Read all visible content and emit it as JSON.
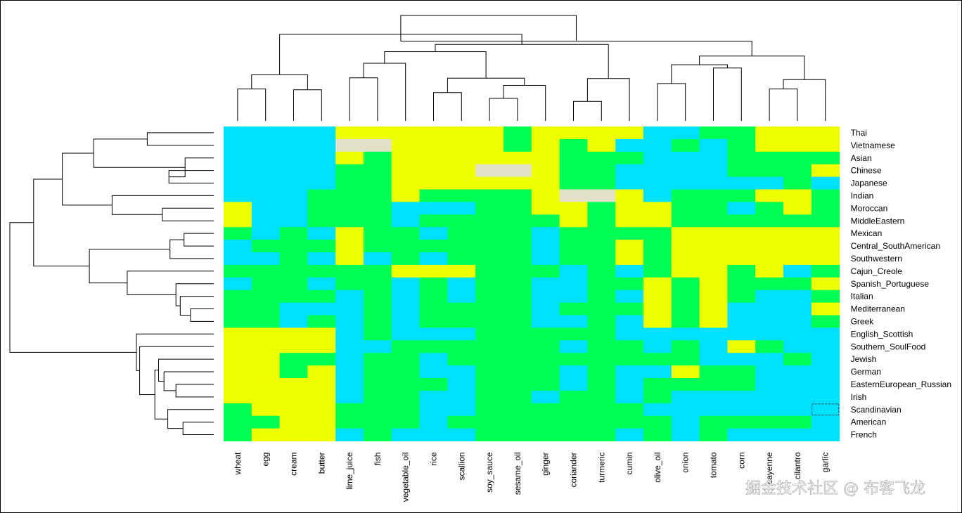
{
  "chart_data": {
    "type": "heatmap",
    "title": "",
    "rows": [
      "Thai",
      "Vietnamese",
      "Asian",
      "Chinese",
      "Japanese",
      "Indian",
      "Moroccan",
      "MiddleEastern",
      "Mexican",
      "Central_SouthAmerican",
      "Southwestern",
      "Cajun_Creole",
      "Spanish_Portuguese",
      "Italian",
      "Mediterranean",
      "Greek",
      "English_Scottish",
      "Southern_SoulFood",
      "Jewish",
      "German",
      "EasternEuropean_Russian",
      "Irish",
      "Scandinavian",
      "American",
      "French"
    ],
    "columns": [
      "wheat",
      "egg",
      "cream",
      "butter",
      "lime_juice",
      "fish",
      "vegetable_oil",
      "rice",
      "scallion",
      "soy_sauce",
      "sesame_oil",
      "ginger",
      "coriander",
      "turmeric",
      "cumin",
      "olive_oil",
      "onion",
      "tomato",
      "corn",
      "cayenne",
      "cilantro",
      "garlic"
    ],
    "levels": {
      "0": {
        "name": "low",
        "color": "#00e1ff"
      },
      "1": {
        "name": "medium",
        "color": "#00ff55"
      },
      "2": {
        "name": "high",
        "color": "#eeff00"
      },
      "3": {
        "name": "missing",
        "color": "#e3e0c8"
      }
    },
    "values": [
      [
        0,
        0,
        0,
        0,
        2,
        2,
        2,
        2,
        2,
        2,
        1,
        2,
        2,
        2,
        2,
        0,
        0,
        1,
        1,
        2,
        2,
        2
      ],
      [
        0,
        0,
        0,
        0,
        3,
        3,
        2,
        2,
        2,
        2,
        1,
        2,
        1,
        2,
        0,
        0,
        1,
        0,
        1,
        2,
        2,
        2
      ],
      [
        0,
        0,
        0,
        0,
        2,
        1,
        2,
        2,
        2,
        2,
        2,
        2,
        1,
        1,
        1,
        0,
        0,
        0,
        1,
        1,
        1,
        1
      ],
      [
        0,
        0,
        0,
        0,
        1,
        1,
        2,
        2,
        2,
        3,
        3,
        2,
        1,
        1,
        0,
        0,
        0,
        0,
        1,
        1,
        1,
        2
      ],
      [
        0,
        0,
        0,
        0,
        1,
        1,
        2,
        2,
        2,
        2,
        2,
        2,
        1,
        1,
        0,
        0,
        0,
        0,
        0,
        0,
        1,
        0
      ],
      [
        0,
        0,
        0,
        1,
        1,
        1,
        2,
        1,
        1,
        1,
        1,
        2,
        3,
        3,
        2,
        0,
        1,
        1,
        1,
        2,
        2,
        1
      ],
      [
        2,
        0,
        0,
        1,
        1,
        1,
        0,
        0,
        0,
        1,
        1,
        2,
        2,
        1,
        2,
        2,
        1,
        1,
        0,
        1,
        2,
        1
      ],
      [
        2,
        0,
        0,
        1,
        1,
        1,
        0,
        1,
        1,
        1,
        1,
        1,
        2,
        1,
        2,
        2,
        1,
        1,
        1,
        1,
        1,
        1
      ],
      [
        1,
        0,
        1,
        0,
        2,
        1,
        1,
        0,
        1,
        1,
        1,
        0,
        1,
        1,
        1,
        1,
        2,
        2,
        2,
        2,
        2,
        2
      ],
      [
        0,
        1,
        1,
        1,
        2,
        1,
        1,
        1,
        1,
        1,
        1,
        0,
        1,
        1,
        2,
        1,
        2,
        2,
        2,
        2,
        2,
        2
      ],
      [
        0,
        0,
        1,
        0,
        2,
        0,
        1,
        0,
        1,
        1,
        1,
        0,
        1,
        1,
        2,
        1,
        2,
        2,
        2,
        2,
        2,
        2
      ],
      [
        1,
        1,
        1,
        1,
        1,
        1,
        2,
        2,
        2,
        1,
        1,
        1,
        0,
        1,
        0,
        1,
        2,
        2,
        1,
        2,
        0,
        1
      ],
      [
        0,
        1,
        1,
        0,
        1,
        1,
        0,
        1,
        0,
        1,
        1,
        0,
        0,
        1,
        1,
        2,
        1,
        2,
        1,
        1,
        1,
        2
      ],
      [
        1,
        1,
        1,
        1,
        0,
        1,
        0,
        1,
        0,
        1,
        1,
        0,
        0,
        1,
        0,
        2,
        1,
        2,
        1,
        0,
        0,
        1
      ],
      [
        1,
        1,
        0,
        0,
        0,
        1,
        0,
        1,
        1,
        1,
        1,
        0,
        1,
        1,
        1,
        2,
        1,
        2,
        0,
        0,
        0,
        2
      ],
      [
        1,
        1,
        0,
        1,
        0,
        1,
        0,
        1,
        1,
        1,
        1,
        0,
        0,
        1,
        0,
        2,
        1,
        2,
        0,
        0,
        0,
        1
      ],
      [
        2,
        2,
        2,
        2,
        0,
        1,
        0,
        0,
        0,
        1,
        1,
        1,
        1,
        1,
        0,
        0,
        0,
        0,
        0,
        0,
        0,
        0
      ],
      [
        2,
        2,
        2,
        2,
        0,
        0,
        1,
        1,
        1,
        1,
        1,
        1,
        0,
        1,
        1,
        0,
        1,
        0,
        2,
        1,
        0,
        0
      ],
      [
        2,
        2,
        1,
        1,
        0,
        1,
        1,
        0,
        1,
        1,
        1,
        1,
        1,
        1,
        1,
        1,
        1,
        0,
        0,
        0,
        1,
        0
      ],
      [
        2,
        2,
        1,
        2,
        0,
        1,
        1,
        0,
        0,
        1,
        1,
        1,
        0,
        1,
        0,
        0,
        2,
        1,
        1,
        0,
        0,
        0
      ],
      [
        2,
        2,
        2,
        2,
        0,
        1,
        1,
        1,
        0,
        1,
        1,
        1,
        0,
        1,
        0,
        1,
        1,
        1,
        1,
        0,
        0,
        0
      ],
      [
        2,
        2,
        2,
        2,
        0,
        1,
        1,
        0,
        0,
        1,
        1,
        0,
        1,
        1,
        0,
        1,
        0,
        0,
        0,
        0,
        0,
        0
      ],
      [
        1,
        2,
        2,
        2,
        1,
        1,
        1,
        0,
        0,
        1,
        1,
        1,
        1,
        1,
        1,
        0,
        0,
        0,
        0,
        0,
        0,
        0
      ],
      [
        1,
        1,
        2,
        2,
        1,
        1,
        1,
        0,
        1,
        1,
        1,
        1,
        1,
        1,
        1,
        1,
        0,
        1,
        1,
        1,
        1,
        0
      ],
      [
        1,
        2,
        2,
        2,
        0,
        1,
        0,
        0,
        0,
        1,
        1,
        1,
        1,
        1,
        0,
        1,
        0,
        1,
        0,
        0,
        0,
        0
      ]
    ],
    "highlighted_cell": {
      "row": "Scandinavian",
      "column": "garlic"
    },
    "column_dendrogram": {
      "leaf_order": [
        "wheat",
        "egg",
        "cream",
        "butter",
        "lime_juice",
        "fish",
        "vegetable_oil",
        "rice",
        "scallion",
        "soy_sauce",
        "sesame_oil",
        "ginger",
        "coriander",
        "turmeric",
        "cumin",
        "olive_oil",
        "onion",
        "tomato",
        "corn",
        "cayenne",
        "cilantro",
        "garlic"
      ],
      "merges": [
        {
          "a": "L0",
          "b": "L1",
          "h": 0.88
        },
        {
          "a": "L2",
          "b": "L3",
          "h": 0.86
        },
        {
          "a": "N0",
          "b": "N1",
          "h": 1.27
        },
        {
          "a": "L4",
          "b": "L5",
          "h": 1.19
        },
        {
          "a": "N3",
          "b": "L6",
          "h": 1.59
        },
        {
          "a": "L7",
          "b": "L8",
          "h": 0.78
        },
        {
          "a": "L9",
          "b": "L10",
          "h": 0.62
        },
        {
          "a": "N6",
          "b": "L11",
          "h": 0.98
        },
        {
          "a": "N5",
          "b": "N7",
          "h": 1.18
        },
        {
          "a": "N4",
          "b": "N8",
          "h": 1.91
        },
        {
          "a": "L12",
          "b": "L13",
          "h": 0.54
        },
        {
          "a": "N10",
          "b": "L14",
          "h": 1.17
        },
        {
          "a": "N9",
          "b": "N11",
          "h": 2.11
        },
        {
          "a": "N2",
          "b": "N12",
          "h": 2.39
        },
        {
          "a": "L15",
          "b": "L16",
          "h": 1.03
        },
        {
          "a": "L17",
          "b": "L18",
          "h": 1.46
        },
        {
          "a": "L19",
          "b": "L20",
          "h": 0.88
        },
        {
          "a": "N16",
          "b": "L21",
          "h": 1.14
        },
        {
          "a": "N14",
          "b": "N15",
          "h": 1.55
        },
        {
          "a": "N18",
          "b": "N17",
          "h": 1.79
        },
        {
          "a": "N19",
          "b": "N13",
          "h": 2.2
        },
        {
          "a": "N13",
          "b": "N20",
          "h": 2.91
        }
      ]
    },
    "row_dendrogram": {
      "leaf_order": [
        "Thai",
        "Vietnamese",
        "Asian",
        "Chinese",
        "Japanese",
        "Indian",
        "Moroccan",
        "MiddleEastern",
        "Mexican",
        "Central_SouthAmerican",
        "Southwestern",
        "Cajun_Creole",
        "Spanish_Portuguese",
        "Italian",
        "Mediterranean",
        "Greek",
        "English_Scottish",
        "Southern_SoulFood",
        "Jewish",
        "German",
        "EasternEuropean_Russian",
        "Irish",
        "Scandinavian",
        "American",
        "French"
      ],
      "merges": [
        {
          "a": "L0",
          "b": "L1",
          "h": 1.23
        },
        {
          "a": "L3",
          "b": "L4",
          "h": 0.83
        },
        {
          "a": "L2",
          "b": "N1",
          "h": 0.53
        },
        {
          "a": "N0",
          "b": "N2",
          "h": 2.22
        },
        {
          "a": "L6",
          "b": "L7",
          "h": 0.95
        },
        {
          "a": "L5",
          "b": "N4",
          "h": 1.88
        },
        {
          "a": "N3",
          "b": "N5",
          "h": 2.8
        },
        {
          "a": "L8",
          "b": "L9",
          "h": 0.55
        },
        {
          "a": "N7",
          "b": "L10",
          "h": 0.81
        },
        {
          "a": "L14",
          "b": "L15",
          "h": 0.43
        },
        {
          "a": "L13",
          "b": "N9",
          "h": 0.62
        },
        {
          "a": "L12",
          "b": "N10",
          "h": 0.7
        },
        {
          "a": "L11",
          "b": "N11",
          "h": 1.6
        },
        {
          "a": "N8",
          "b": "N12",
          "h": 2.3
        },
        {
          "a": "N6",
          "b": "N13",
          "h": 3.33
        },
        {
          "a": "L20",
          "b": "L21",
          "h": 0.7
        },
        {
          "a": "L19",
          "b": "N15",
          "h": 0.92
        },
        {
          "a": "L18",
          "b": "N16",
          "h": 1.02
        },
        {
          "a": "L23",
          "b": "L24",
          "h": 0.57
        },
        {
          "a": "L22",
          "b": "N18",
          "h": 0.85
        },
        {
          "a": "N17",
          "b": "N19",
          "h": 1.09
        },
        {
          "a": "L17",
          "b": "N20",
          "h": 1.37
        },
        {
          "a": "L16",
          "b": "N21",
          "h": 1.43
        },
        {
          "a": "N14",
          "b": "N22",
          "h": 3.77
        }
      ]
    }
  },
  "watermark": "掘金技术社区 @ 布客飞龙"
}
